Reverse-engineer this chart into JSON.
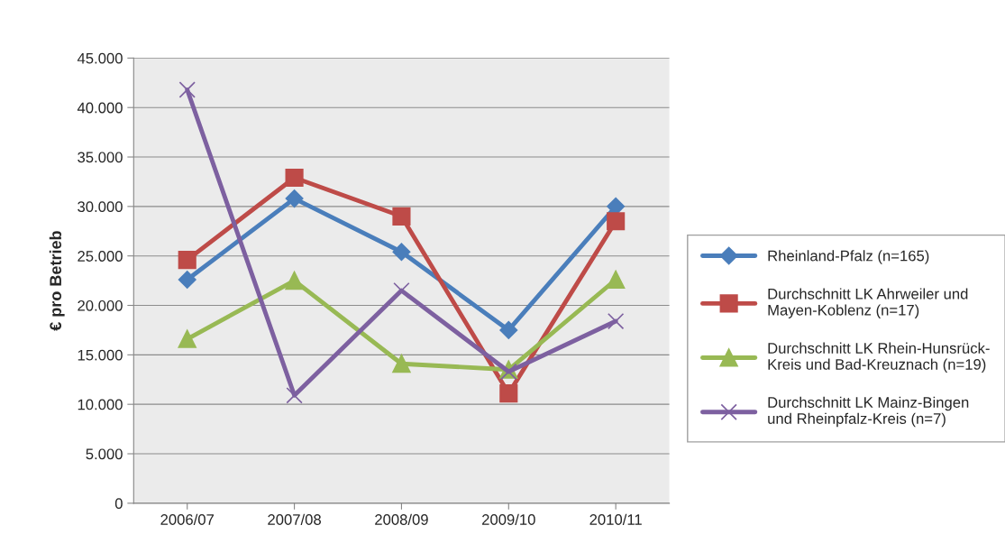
{
  "chart_data": {
    "type": "line",
    "ylabel": "€ pro Betrieb",
    "categories": [
      "2006/07",
      "2007/08",
      "2008/09",
      "2009/10",
      "2010/11"
    ],
    "series": [
      {
        "name": "Rheinland-Pfalz (n=165)",
        "color": "#4a7ebb",
        "marker": "diamond",
        "values": [
          22600,
          30800,
          25400,
          17500,
          30000
        ]
      },
      {
        "name": "Durchschnitt LK Ahrweiler und\nMayen-Koblenz (n=17)",
        "color": "#be4b48",
        "marker": "square",
        "values": [
          24600,
          32900,
          29000,
          11100,
          28500
        ]
      },
      {
        "name": "Durchschnitt LK Rhein-Hunsrück-\nKreis und Bad-Kreuznach (n=19)",
        "color": "#98b954",
        "marker": "triangle",
        "values": [
          16600,
          22500,
          14100,
          13500,
          22600
        ]
      },
      {
        "name": "Durchschnitt LK Mainz-Bingen\nund Rheinpfalz-Kreis (n=7)",
        "color": "#7d60a0",
        "marker": "cross",
        "values": [
          41800,
          10900,
          21500,
          13300,
          18400
        ]
      }
    ],
    "ylim": [
      0,
      45000
    ],
    "yticks": [
      {
        "value": 0,
        "label": "0"
      },
      {
        "value": 5000,
        "label": "5.000"
      },
      {
        "value": 10000,
        "label": "10.000"
      },
      {
        "value": 15000,
        "label": "15.000"
      },
      {
        "value": 20000,
        "label": "20.000"
      },
      {
        "value": 25000,
        "label": "25.000"
      },
      {
        "value": 30000,
        "label": "30.000"
      },
      {
        "value": 35000,
        "label": "35.000"
      },
      {
        "value": 40000,
        "label": "40.000"
      },
      {
        "value": 45000,
        "label": "45.000"
      }
    ],
    "grid": "y",
    "legend": "right",
    "line_style": "solid"
  }
}
